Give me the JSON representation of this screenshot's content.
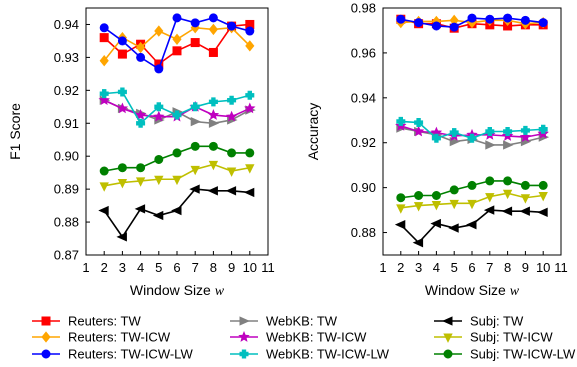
{
  "chart_data": [
    {
      "type": "line",
      "xlabel": "Window Size w",
      "ylabel": "F1 Score",
      "xlim": [
        1,
        11
      ],
      "ylim": [
        0.87,
        0.945
      ],
      "xticks": [
        1,
        2,
        3,
        4,
        5,
        6,
        7,
        8,
        9,
        10,
        11
      ],
      "yticks": [
        "0.87",
        "0.88",
        "0.89",
        "0.90",
        "0.91",
        "0.92",
        "0.93",
        "0.94"
      ],
      "ytick_values": [
        0.87,
        0.88,
        0.89,
        0.9,
        0.91,
        0.92,
        0.93,
        0.94
      ],
      "grid": false,
      "x": [
        2,
        3,
        4,
        5,
        6,
        7,
        8,
        9,
        10
      ],
      "series": [
        {
          "name": "Reuters: TW",
          "values": [
            0.936,
            0.931,
            0.934,
            0.928,
            0.932,
            0.9345,
            0.9315,
            0.9395,
            0.94
          ]
        },
        {
          "name": "Reuters: TW-ICW",
          "values": [
            0.929,
            0.936,
            0.933,
            0.938,
            0.9355,
            0.939,
            0.9385,
            0.939,
            0.9335
          ]
        },
        {
          "name": "Reuters: TW-ICW-LW",
          "values": [
            0.939,
            0.935,
            0.93,
            0.9265,
            0.942,
            0.9405,
            0.942,
            0.9395,
            0.938
          ]
        },
        {
          "name": "WebKB: TW",
          "values": [
            0.917,
            0.9145,
            0.913,
            0.911,
            0.9135,
            0.9105,
            0.91,
            0.911,
            0.914
          ]
        },
        {
          "name": "WebKB: TW-ICW",
          "values": [
            0.917,
            0.9145,
            0.9125,
            0.912,
            0.912,
            0.915,
            0.9125,
            0.912,
            0.9145
          ]
        },
        {
          "name": "WebKB: TW-ICW-LW",
          "values": [
            0.919,
            0.9195,
            0.91,
            0.915,
            0.9125,
            0.915,
            0.9165,
            0.917,
            0.9185
          ]
        },
        {
          "name": "Subj: TW",
          "values": [
            0.8835,
            0.8755,
            0.884,
            0.882,
            0.8835,
            0.89,
            0.8895,
            0.8895,
            0.889
          ]
        },
        {
          "name": "Subj: TW-ICW",
          "values": [
            0.891,
            0.892,
            0.8925,
            0.893,
            0.893,
            0.896,
            0.8975,
            0.8955,
            0.8965
          ]
        },
        {
          "name": "Subj: TW-ICW-LW",
          "values": [
            0.8955,
            0.8965,
            0.8965,
            0.899,
            0.901,
            0.903,
            0.903,
            0.901,
            0.901
          ]
        }
      ]
    },
    {
      "type": "line",
      "xlabel": "Window Size w",
      "ylabel": "Accuracy",
      "xlim": [
        1,
        11
      ],
      "ylim": [
        0.87,
        0.98
      ],
      "xticks": [
        1,
        2,
        3,
        4,
        5,
        6,
        7,
        8,
        9,
        10,
        11
      ],
      "yticks": [
        "0.88",
        "0.90",
        "0.92",
        "0.94",
        "0.96",
        "0.98"
      ],
      "ytick_values": [
        0.88,
        0.9,
        0.92,
        0.94,
        0.96,
        0.98
      ],
      "grid": false,
      "x": [
        2,
        3,
        4,
        5,
        6,
        7,
        8,
        9,
        10
      ],
      "series": [
        {
          "name": "Reuters: TW",
          "values": [
            0.975,
            0.973,
            0.973,
            0.971,
            0.973,
            0.9725,
            0.972,
            0.9725,
            0.9725
          ]
        },
        {
          "name": "Reuters: TW-ICW",
          "values": [
            0.9735,
            0.974,
            0.974,
            0.9745,
            0.9735,
            0.9745,
            0.9745,
            0.973,
            0.9735
          ]
        },
        {
          "name": "Reuters: TW-ICW-LW",
          "values": [
            0.975,
            0.9735,
            0.972,
            0.9715,
            0.9755,
            0.975,
            0.9755,
            0.9745,
            0.9735
          ]
        },
        {
          "name": "WebKB: TW",
          "values": [
            0.9265,
            0.925,
            0.9235,
            0.9205,
            0.9215,
            0.919,
            0.919,
            0.9205,
            0.9225
          ]
        },
        {
          "name": "WebKB: TW-ICW",
          "values": [
            0.9275,
            0.925,
            0.9245,
            0.923,
            0.9235,
            0.9235,
            0.923,
            0.9225,
            0.924
          ]
        },
        {
          "name": "WebKB: TW-ICW-LW",
          "values": [
            0.9295,
            0.929,
            0.922,
            0.9245,
            0.922,
            0.925,
            0.925,
            0.9255,
            0.926
          ]
        },
        {
          "name": "Subj: TW",
          "values": [
            0.8835,
            0.8755,
            0.884,
            0.882,
            0.8835,
            0.89,
            0.8895,
            0.8895,
            0.889
          ]
        },
        {
          "name": "Subj: TW-ICW",
          "values": [
            0.891,
            0.892,
            0.8925,
            0.893,
            0.893,
            0.896,
            0.8975,
            0.8955,
            0.8965
          ]
        },
        {
          "name": "Subj: TW-ICW-LW",
          "values": [
            0.8955,
            0.8965,
            0.8965,
            0.899,
            0.901,
            0.903,
            0.903,
            0.901,
            0.901
          ]
        }
      ]
    }
  ],
  "legend": {
    "placement": "bottom",
    "entries": [
      {
        "label": "Reuters: TW",
        "color": "#ff0000",
        "marker": "square"
      },
      {
        "label": "Reuters: TW-ICW",
        "color": "#ffa500",
        "marker": "diamond"
      },
      {
        "label": "Reuters: TW-ICW-LW",
        "color": "#0000ff",
        "marker": "circle"
      },
      {
        "label": "WebKB: TW",
        "color": "#808080",
        "marker": "triangle-right"
      },
      {
        "label": "WebKB: TW-ICW",
        "color": "#bf00bf",
        "marker": "star"
      },
      {
        "label": "WebKB: TW-ICW-LW",
        "color": "#00bfbf",
        "marker": "plus-filled"
      },
      {
        "label": "Subj: TW",
        "color": "#000000",
        "marker": "triangle-left"
      },
      {
        "label": "Subj: TW-ICW",
        "color": "#bfbf00",
        "marker": "triangle-down"
      },
      {
        "label": "Subj: TW-ICW-LW",
        "color": "#008000",
        "marker": "circle"
      }
    ]
  }
}
